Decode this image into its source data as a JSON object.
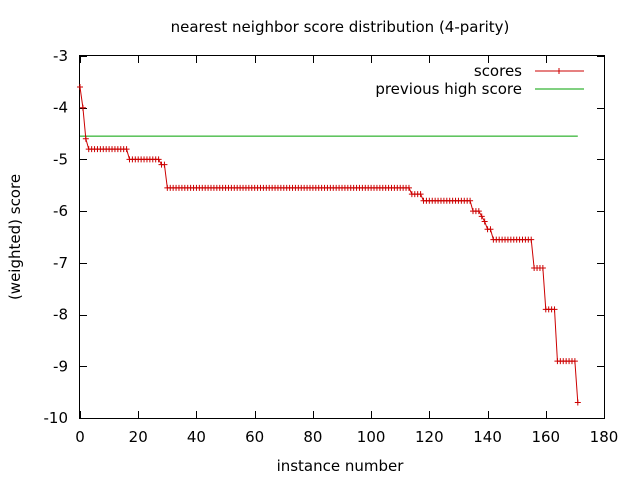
{
  "chart_data": {
    "type": "line",
    "title": "nearest neighbor score distribution (4-parity)",
    "xlabel": "instance number",
    "ylabel": "(weighted) score",
    "xlim": [
      0,
      180
    ],
    "ylim": [
      -10,
      -3
    ],
    "xticks": [
      0,
      20,
      40,
      60,
      80,
      100,
      120,
      140,
      160,
      180
    ],
    "yticks": [
      -3,
      -4,
      -5,
      -6,
      -7,
      -8,
      -9,
      -10
    ],
    "legend": "top-right",
    "series": [
      {
        "name": "scores",
        "color": "#cc0000",
        "marker": "plus",
        "runs": [
          {
            "from": 0,
            "to": 0,
            "value": -3.6
          },
          {
            "from": 1,
            "to": 1,
            "value": -4.0
          },
          {
            "from": 2,
            "to": 2,
            "value": -4.6
          },
          {
            "from": 3,
            "to": 16,
            "value": -4.8
          },
          {
            "from": 17,
            "to": 27,
            "value": -5.0
          },
          {
            "from": 28,
            "to": 29,
            "value": -5.1
          },
          {
            "from": 30,
            "to": 113,
            "value": -5.55
          },
          {
            "from": 114,
            "to": 117,
            "value": -5.67
          },
          {
            "from": 118,
            "to": 134,
            "value": -5.8
          },
          {
            "from": 135,
            "to": 137,
            "value": -6.0
          },
          {
            "from": 138,
            "to": 138,
            "value": -6.1
          },
          {
            "from": 139,
            "to": 139,
            "value": -6.2
          },
          {
            "from": 140,
            "to": 141,
            "value": -6.35
          },
          {
            "from": 142,
            "to": 155,
            "value": -6.55
          },
          {
            "from": 156,
            "to": 159,
            "value": -7.1
          },
          {
            "from": 160,
            "to": 163,
            "value": -7.9
          },
          {
            "from": 164,
            "to": 170,
            "value": -8.9
          },
          {
            "from": 171,
            "to": 171,
            "value": -9.7
          }
        ]
      },
      {
        "name": "previous high score",
        "color": "#00a000",
        "marker": "none",
        "x": [
          0,
          171
        ],
        "y": [
          -4.55,
          -4.55
        ]
      }
    ]
  }
}
